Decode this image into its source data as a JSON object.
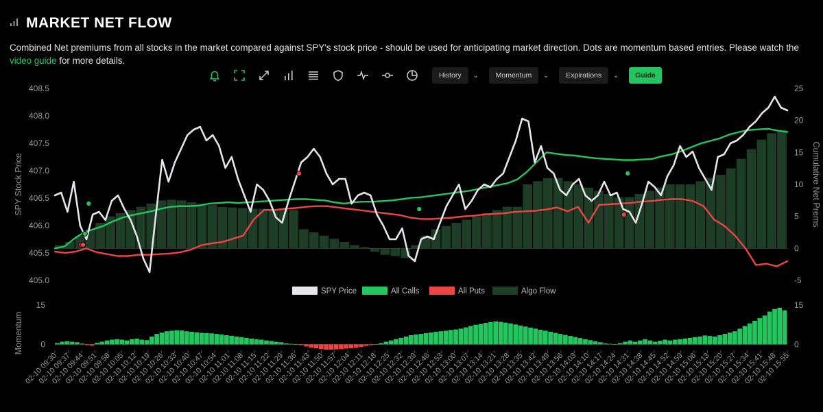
{
  "header": {
    "title": "MARKET NET FLOW",
    "description_main": "Combined Net premiums from all stocks in the market compared against SPY's stock price - should be used for anticipating market direction. Dots are momentum based entries. Please watch the ",
    "description_link": "video guide",
    "description_tail": " for more details."
  },
  "toolbar": {
    "icons": [
      "bell-icon",
      "focus-frame-icon",
      "expand-icon",
      "bar-chart-icon",
      "list-icon",
      "shield-icon",
      "pulse-icon",
      "commit-line-icon",
      "pie-chart-icon"
    ],
    "history_label": "History",
    "momentum_label": "Momentum",
    "expirations_label": "Expirations",
    "guide_label": "Guide",
    "accent_color": "#22c55e"
  },
  "chart_data": [
    {
      "type": "line",
      "ylabel": "SPY Stock Price",
      "ylabel_right": "Cumulative Net Prems",
      "ylim": [
        405.0,
        408.5
      ],
      "y_ticks": [
        "405.0",
        "405.5",
        "406.0",
        "406.5",
        "407.0",
        "407.5",
        "408.0",
        "408.5"
      ],
      "ylim_right": [
        -5,
        25
      ],
      "y_ticks_right": [
        "-5",
        "0",
        "5",
        "10",
        "15",
        "20",
        "25"
      ],
      "legend_position": "bottom-center",
      "colors": {
        "spy": "#e5e5ea",
        "calls": "#22c55e",
        "puts": "#ef4444",
        "algo": "#1e3d26"
      },
      "series": [
        {
          "name": "SPY Price",
          "axis": "left",
          "values": [
            406.55,
            406.6,
            406.25,
            406.8,
            406.0,
            405.75,
            406.2,
            406.25,
            406.1,
            406.45,
            406.55,
            406.3,
            406.1,
            405.8,
            405.4,
            405.15,
            406.2,
            407.2,
            406.8,
            407.15,
            407.4,
            407.65,
            407.75,
            407.8,
            407.55,
            407.65,
            407.45,
            407.05,
            407.25,
            406.85,
            406.55,
            406.25,
            406.75,
            406.65,
            406.45,
            406.15,
            406.05,
            406.45,
            406.8,
            407.15,
            407.25,
            407.4,
            407.25,
            406.95,
            406.75,
            406.85,
            406.85,
            406.4,
            406.55,
            406.6,
            406.55,
            406.2,
            406.0,
            405.75,
            405.75,
            405.95,
            405.45,
            405.35,
            405.75,
            405.8,
            405.75,
            406.05,
            406.35,
            406.55,
            406.75,
            406.3,
            406.45,
            406.65,
            406.75,
            406.7,
            406.85,
            406.95,
            407.25,
            407.55,
            407.95,
            407.9,
            407.15,
            407.45,
            407.05,
            406.95,
            406.65,
            406.55,
            406.75,
            406.85,
            406.55,
            406.45,
            406.55,
            406.8,
            406.55,
            406.6,
            406.3,
            406.25,
            406.05,
            406.4,
            406.8,
            406.7,
            406.55,
            406.9,
            407.1,
            407.45,
            407.25,
            407.35,
            407.05,
            406.85,
            406.65,
            407.25,
            407.3,
            407.5,
            407.55,
            407.65,
            407.8,
            407.9,
            408.05,
            408.15,
            408.35,
            408.15,
            408.1
          ]
        },
        {
          "name": "All Calls",
          "axis": "right",
          "values": [
            0,
            0.3,
            1.5,
            2.5,
            3.0,
            3.5,
            4.2,
            4.8,
            5.2,
            5.5,
            5.8,
            6.2,
            6.5,
            6.6,
            6.6,
            6.7,
            7.0,
            7.1,
            7.2,
            7.1,
            7.2,
            7.3,
            7.4,
            7.5,
            7.6,
            7.7,
            7.7,
            7.6,
            7.5,
            7.2,
            7.0,
            7.2,
            7.3,
            7.3,
            7.4,
            7.5,
            7.7,
            7.9,
            8.0,
            8.2,
            8.4,
            8.6,
            8.8,
            9.0,
            9.3,
            9.6,
            9.9,
            10.2,
            10.8,
            12.0,
            13.5,
            15.0,
            14.8,
            14.6,
            14.5,
            14.3,
            14.1,
            14.0,
            13.9,
            13.8,
            13.8,
            13.9,
            14.0,
            14.4,
            14.7,
            15.2,
            15.8,
            16.4,
            16.8,
            17.2,
            17.8,
            18.2,
            18.5,
            18.6,
            18.7,
            18.4,
            18.2
          ]
        },
        {
          "name": "All Puts",
          "axis": "right",
          "values": [
            -0.5,
            -0.7,
            -0.5,
            0,
            -0.6,
            -0.9,
            -1.2,
            -1.2,
            -1.0,
            -1.0,
            -0.9,
            -0.8,
            -0.6,
            -0.2,
            0.5,
            0.8,
            1.0,
            1.5,
            2.0,
            4.5,
            6.0,
            6.0,
            6.2,
            6.3,
            6.5,
            6.6,
            6.6,
            6.4,
            6.2,
            6.0,
            5.8,
            5.6,
            5.4,
            5.2,
            4.8,
            4.6,
            4.6,
            4.7,
            4.8,
            5.0,
            5.1,
            5.3,
            5.4,
            5.5,
            5.7,
            5.8,
            5.9,
            6.1,
            6.4,
            5.8,
            6.5,
            4.0,
            6.8,
            6.9,
            7.0,
            7.1,
            7.3,
            7.4,
            7.6,
            7.7,
            7.7,
            7.4,
            6.6,
            4.5,
            3.5,
            2.0,
            0,
            -2.6,
            -2.4,
            -2.8,
            -2.0
          ]
        },
        {
          "name": "Algo Flow",
          "axis": "right",
          "style": "bars",
          "values": [
            0.5,
            1.0,
            2.0,
            3.0,
            4.0,
            5.0,
            5.5,
            6.0,
            6.5,
            7.0,
            7.5,
            7.6,
            7.5,
            7.2,
            7.0,
            6.8,
            6.5,
            6.4,
            6.3,
            6.2,
            6.2,
            6.1,
            6.0,
            6.0,
            3.0,
            2.5,
            2.0,
            1.5,
            1.0,
            0.5,
            0.2,
            -0.5,
            -1.0,
            -1.2,
            -1.5,
            0.5,
            2.0,
            3.0,
            3.5,
            4.0,
            4.5,
            5.0,
            5.5,
            6.0,
            6.5,
            6.5,
            10.0,
            10.5,
            11.0,
            11.0,
            10.5,
            10.0,
            9.5,
            9.0,
            8.5,
            8.0,
            8.0,
            8.5,
            9.0,
            9.5,
            10.0,
            10.0,
            10.0,
            10.5,
            11.0,
            11.5,
            12.5,
            14.0,
            15.5,
            17.0,
            18.0,
            18.5
          ]
        }
      ],
      "entry_dots": [
        {
          "color": "red",
          "x": "02-10 09:44",
          "y": 405.65
        },
        {
          "color": "red",
          "x": "02-10 09:45",
          "y": 405.65
        },
        {
          "color": "green",
          "x": "02-10 09:46",
          "y": 405.85
        },
        {
          "color": "green",
          "x": "02-10 09:48",
          "y": 406.4
        },
        {
          "color": "red",
          "x": "02-10 11:40",
          "y": 406.95
        },
        {
          "color": "green",
          "x": "02-10 12:44",
          "y": 406.3
        },
        {
          "color": "red",
          "x": "02-10 14:33",
          "y": 406.2
        },
        {
          "color": "green",
          "x": "02-10 14:35",
          "y": 406.95
        }
      ]
    },
    {
      "type": "bar",
      "ylabel": "Momentum",
      "ylim": [
        -2,
        15
      ],
      "y_ticks": [
        "0",
        "15"
      ],
      "y_ticks_right": [
        "0",
        "15"
      ],
      "colors": {
        "positive": "#22c55e",
        "negative": "#ef4444"
      },
      "x_tick_labels": [
        "02-10 09:30",
        "02-10 09:37",
        "02-10 09:44",
        "02-10 09:51",
        "02-10 09:58",
        "02-10 10:05",
        "02-10 10:12",
        "02-10 10:19",
        "02-10 10:26",
        "02-10 10:33",
        "02-10 10:40",
        "02-10 10:47",
        "02-10 10:54",
        "02-10 11:01",
        "02-10 11:08",
        "02-10 11:15",
        "02-10 11:22",
        "02-10 11:29",
        "02-10 11:36",
        "02-10 11:43",
        "02-10 11:50",
        "02-10 11:57",
        "02-10 12:04",
        "02-10 12:11",
        "02-10 12:18",
        "02-10 12:25",
        "02-10 12:32",
        "02-10 12:39",
        "02-10 12:46",
        "02-10 12:53",
        "02-10 13:00",
        "02-10 13:07",
        "02-10 13:14",
        "02-10 13:21",
        "02-10 13:28",
        "02-10 13:35",
        "02-10 13:42",
        "02-10 13:49",
        "02-10 13:56",
        "02-10 14:03",
        "02-10 14:10",
        "02-10 14:17",
        "02-10 14:24",
        "02-10 14:31",
        "02-10 14:38",
        "02-10 14:45",
        "02-10 14:52",
        "02-10 14:59",
        "02-10 15:06",
        "02-10 15:13",
        "02-10 15:20",
        "02-10 15:27",
        "02-10 15:34",
        "02-10 15:41",
        "02-10 15:48",
        "02-10 15:55"
      ],
      "values": [
        0.5,
        1.0,
        1.2,
        1.0,
        0.8,
        0.3,
        -0.3,
        -0.5,
        0.6,
        1.0,
        1.5,
        1.8,
        2.0,
        1.8,
        1.5,
        2.0,
        2.2,
        1.8,
        1.6,
        3.0,
        4.0,
        4.5,
        5.0,
        5.2,
        5.4,
        5.3,
        5.0,
        4.8,
        4.6,
        4.4,
        4.3,
        4.2,
        4.0,
        3.8,
        3.5,
        3.3,
        3.0,
        2.8,
        2.5,
        2.2,
        2.0,
        1.8,
        1.5,
        1.3,
        1.0,
        0.8,
        0.4,
        0.2,
        0,
        -0.3,
        -0.8,
        -1.2,
        -1.5,
        -1.8,
        -2.0,
        -2.0,
        -1.9,
        -1.8,
        -1.6,
        -1.5,
        -1.3,
        -1.0,
        -0.6,
        -0.3,
        0,
        0.5,
        1.0,
        1.5,
        2.0,
        2.5,
        3.0,
        3.5,
        3.8,
        4.0,
        4.3,
        4.5,
        4.8,
        5.0,
        5.2,
        5.5,
        5.7,
        6.0,
        6.5,
        7.0,
        7.5,
        7.8,
        8.2,
        8.5,
        8.8,
        8.6,
        8.3,
        8.0,
        7.6,
        7.2,
        6.8,
        6.4,
        6.0,
        5.6,
        5.2,
        4.8,
        4.4,
        4.0,
        3.6,
        3.2,
        2.8,
        2.4,
        2.0,
        1.6,
        1.2,
        0.8,
        0.4,
        0.2,
        0,
        0.5,
        1.0,
        1.5,
        1.0,
        1.5,
        2.0,
        1.5,
        1.0,
        1.4,
        1.8,
        1.5,
        1.8,
        2.0,
        2.2,
        2.5,
        2.8,
        3.0,
        3.4,
        3.2,
        3.0,
        3.5,
        4.0,
        4.5,
        5.0,
        6.0,
        7.0,
        8.0,
        9.0,
        10.0,
        11.0,
        12.5,
        13.5,
        14.0,
        13.0
      ]
    }
  ]
}
